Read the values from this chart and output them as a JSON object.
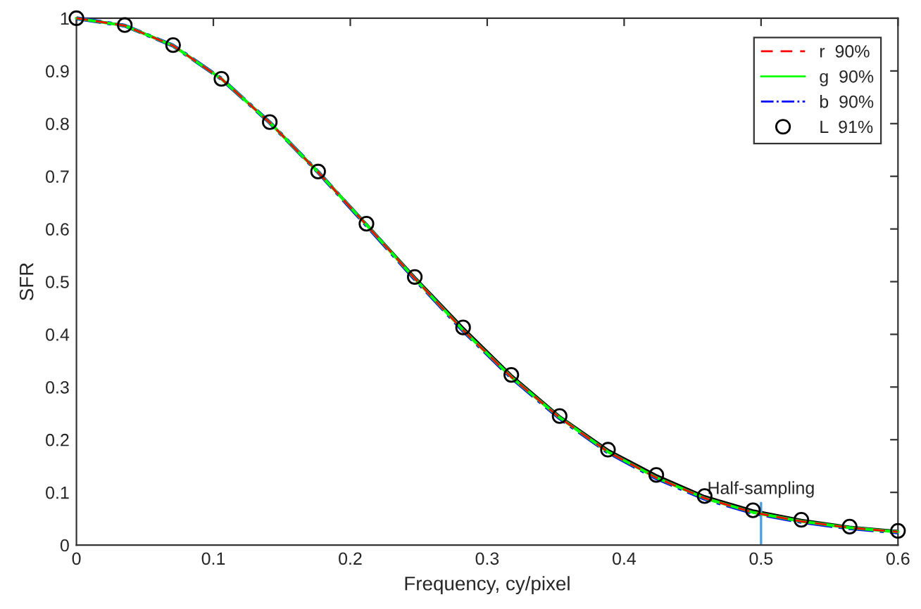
{
  "chart_data": {
    "type": "line",
    "xlabel": "Frequency, cy/pixel",
    "ylabel": "SFR",
    "x": [
      0,
      0.0353,
      0.0706,
      0.1059,
      0.1412,
      0.1765,
      0.2118,
      0.2471,
      0.2824,
      0.3176,
      0.3529,
      0.3882,
      0.4235,
      0.4588,
      0.4941,
      0.5294,
      0.5647,
      0.6
    ],
    "series": [
      {
        "name": "r  90%",
        "color": "#ff0000",
        "line_style": "dashed",
        "marker": "none",
        "values": [
          1,
          0.986,
          0.948,
          0.885,
          0.802,
          0.708,
          0.608,
          0.506,
          0.408,
          0.319,
          0.242,
          0.177,
          0.128,
          0.089,
          0.062,
          0.045,
          0.033,
          0.025
        ]
      },
      {
        "name": "g  90%",
        "color": "#00ff00",
        "line_style": "solid",
        "marker": "none",
        "values": [
          1,
          0.986,
          0.948,
          0.885,
          0.802,
          0.708,
          0.608,
          0.506,
          0.408,
          0.319,
          0.242,
          0.177,
          0.128,
          0.089,
          0.062,
          0.045,
          0.033,
          0.025
        ]
      },
      {
        "name": "b  90%",
        "color": "#0000ff",
        "line_style": "dashdot",
        "marker": "none",
        "values": [
          1,
          0.986,
          0.948,
          0.885,
          0.802,
          0.708,
          0.607,
          0.505,
          0.407,
          0.318,
          0.241,
          0.176,
          0.127,
          0.088,
          0.061,
          0.044,
          0.032,
          0.024
        ]
      },
      {
        "name": "L  91%",
        "color": "#000000",
        "line_style": "solid",
        "marker": "circle",
        "values": [
          1,
          0.987,
          0.949,
          0.885,
          0.803,
          0.709,
          0.61,
          0.509,
          0.413,
          0.323,
          0.245,
          0.181,
          0.133,
          0.093,
          0.066,
          0.048,
          0.035,
          0.027
        ]
      }
    ],
    "xlim": [
      0,
      0.6
    ],
    "xticks": [
      0,
      0.1,
      0.2,
      0.3,
      0.4,
      0.5,
      0.6
    ],
    "ylim": [
      0,
      1
    ],
    "yticks": [
      0,
      0.1,
      0.2,
      0.3,
      0.4,
      0.5,
      0.6,
      0.7,
      0.8,
      0.9,
      1
    ],
    "ref_lines": [
      {
        "axis": "x",
        "value": 0.5,
        "label": "Half-sampling",
        "color": "#4a9fe0"
      }
    ],
    "grid": false,
    "legend": "top right"
  }
}
